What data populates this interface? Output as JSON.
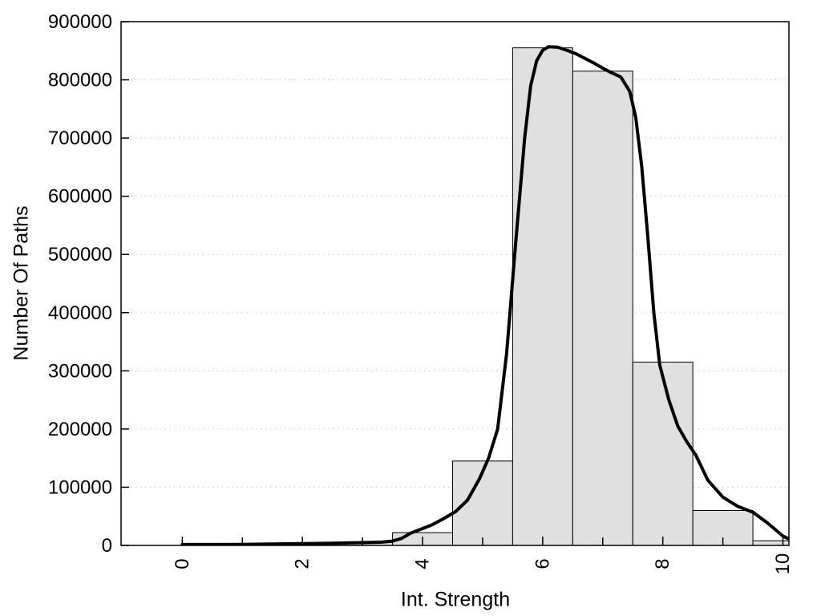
{
  "chart_data": {
    "type": "bar",
    "subtype": "histogram_with_smooth_curve",
    "title": "",
    "xlabel": "Int. Strength",
    "ylabel": "Number Of Paths",
    "xlim": [
      -1.02,
      10.1
    ],
    "ylim": [
      0,
      900000
    ],
    "xticks_major": [
      0,
      2,
      4,
      6,
      8,
      10
    ],
    "xticks_minor": [
      1,
      3,
      5,
      7,
      9
    ],
    "yticks": [
      0,
      100000,
      200000,
      300000,
      400000,
      500000,
      600000,
      700000,
      800000,
      900000
    ],
    "grid": "horizontal-dotted",
    "legend": "none",
    "x_tick_label_rotation_deg": -90,
    "bars": {
      "bin_width": 1,
      "centers": [
        3,
        4,
        5,
        6,
        7,
        8,
        9,
        10
      ],
      "values": [
        5000,
        22000,
        145000,
        855000,
        815000,
        315000,
        60000,
        8000
      ]
    },
    "curve": {
      "name": "smoothed-distribution-curve",
      "x": [
        0,
        0.5,
        1,
        1.5,
        2,
        2.5,
        3,
        3.3,
        3.5,
        3.65,
        3.8,
        4,
        4.15,
        4.35,
        4.55,
        4.75,
        4.95,
        5.1,
        5.25,
        5.4,
        5.55,
        5.7,
        5.8,
        5.9,
        6.0,
        6.1,
        6.25,
        6.4,
        6.55,
        6.7,
        6.85,
        7.0,
        7.15,
        7.3,
        7.45,
        7.55,
        7.65,
        7.75,
        7.85,
        7.95,
        8.1,
        8.25,
        8.4,
        8.55,
        8.75,
        9.0,
        9.25,
        9.5,
        9.75,
        10.0,
        10.1
      ],
      "y": [
        1500,
        1500,
        1800,
        2300,
        3000,
        3800,
        4800,
        5500,
        7500,
        12000,
        21000,
        29000,
        35000,
        46000,
        58000,
        78000,
        115000,
        150000,
        200000,
        330000,
        520000,
        700000,
        790000,
        833000,
        851000,
        857000,
        856000,
        851000,
        845000,
        837000,
        829000,
        820000,
        812000,
        805000,
        780000,
        735000,
        650000,
        530000,
        400000,
        310000,
        250000,
        205000,
        178000,
        155000,
        112000,
        83000,
        67000,
        57000,
        38000,
        16000,
        11000
      ]
    },
    "colors": {
      "bar_fill": "#e0e0e0",
      "bar_stroke": "#000000",
      "curve": "#000000",
      "grid": "#c8c8c8",
      "axis": "#000000",
      "text": "#000000",
      "background": "#ffffff"
    }
  }
}
